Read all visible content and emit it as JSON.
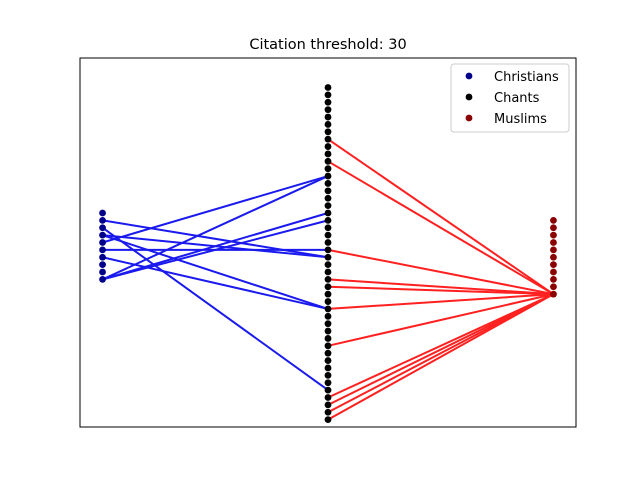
{
  "chart_data": {
    "type": "scatter",
    "title": "Citation threshold: 30",
    "xlabel": "",
    "ylabel": "",
    "grid": false,
    "legend_position": "top-right",
    "xlim": [
      -0.1,
      2.1
    ],
    "ylim": [
      -1.0,
      49.0
    ],
    "series": [
      {
        "name": "Christians",
        "color": "#00008b",
        "x": 0,
        "y_values": [
          19.0,
          20.0,
          21.0,
          22.0,
          23.0,
          24.0,
          25.0,
          26.0,
          27.0,
          28.0
        ]
      },
      {
        "name": "Chants",
        "color": "#000000",
        "x": 1,
        "y_values": [
          0,
          1,
          2,
          3,
          4,
          5,
          6,
          7,
          8,
          9,
          10,
          11,
          12,
          13,
          14,
          15,
          16,
          17,
          18,
          19,
          20,
          21,
          22,
          23,
          24,
          25,
          26,
          27,
          28,
          29,
          30,
          31,
          32,
          33,
          34,
          35,
          36,
          37,
          38,
          39,
          40,
          41,
          42,
          43,
          44,
          45
        ]
      },
      {
        "name": "Muslims",
        "color": "#8b0000",
        "x": 2,
        "y_values": [
          17.0,
          18.0,
          19.0,
          20.0,
          21.0,
          22.0,
          23.0,
          24.0,
          25.0,
          26.0,
          27.0
        ]
      }
    ],
    "edges_christians_to_chants": {
      "color": "#1a1aee",
      "links": [
        [
          0,
          33
        ],
        [
          0,
          28
        ],
        [
          0,
          27
        ],
        [
          3,
          15
        ],
        [
          5,
          33
        ],
        [
          6,
          22
        ],
        [
          6,
          15
        ],
        [
          7,
          4
        ],
        [
          8,
          22
        ],
        [
          4,
          23
        ]
      ]
    },
    "edges_chants_to_muslims": {
      "color": "#ff2020",
      "links": [
        [
          38,
          0
        ],
        [
          35,
          0
        ],
        [
          23,
          0
        ],
        [
          19,
          0
        ],
        [
          18,
          0
        ],
        [
          15,
          0
        ],
        [
          10,
          0
        ],
        [
          3,
          0
        ],
        [
          2,
          0
        ],
        [
          1,
          0
        ],
        [
          0,
          0
        ]
      ]
    }
  }
}
